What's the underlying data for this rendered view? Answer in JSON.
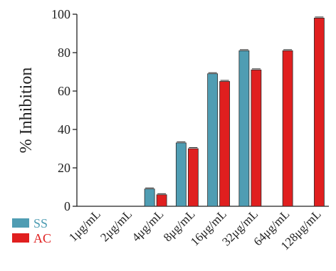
{
  "chart_data": {
    "type": "bar",
    "title": "",
    "xlabel": "",
    "ylabel": "% Inhibition",
    "ylim": [
      0,
      100
    ],
    "yticks": [
      0,
      20,
      40,
      60,
      80,
      100
    ],
    "categories": [
      "1μg/mL",
      "2μg/mL",
      "4μg/mL",
      "8μg/mL",
      "16μg/mL",
      "32μg/mL",
      "64μg/mL",
      "128μg/mL"
    ],
    "series": [
      {
        "name": "SS",
        "color": "#4f9db3",
        "values": [
          0,
          0,
          9,
          33,
          69,
          81,
          null,
          null
        ]
      },
      {
        "name": "AC",
        "color": "#e01f1f",
        "values": [
          0,
          0,
          6,
          30,
          65,
          71,
          81,
          98
        ]
      }
    ],
    "error_bars": true,
    "grid": false,
    "legend_position": "bottom-left"
  }
}
